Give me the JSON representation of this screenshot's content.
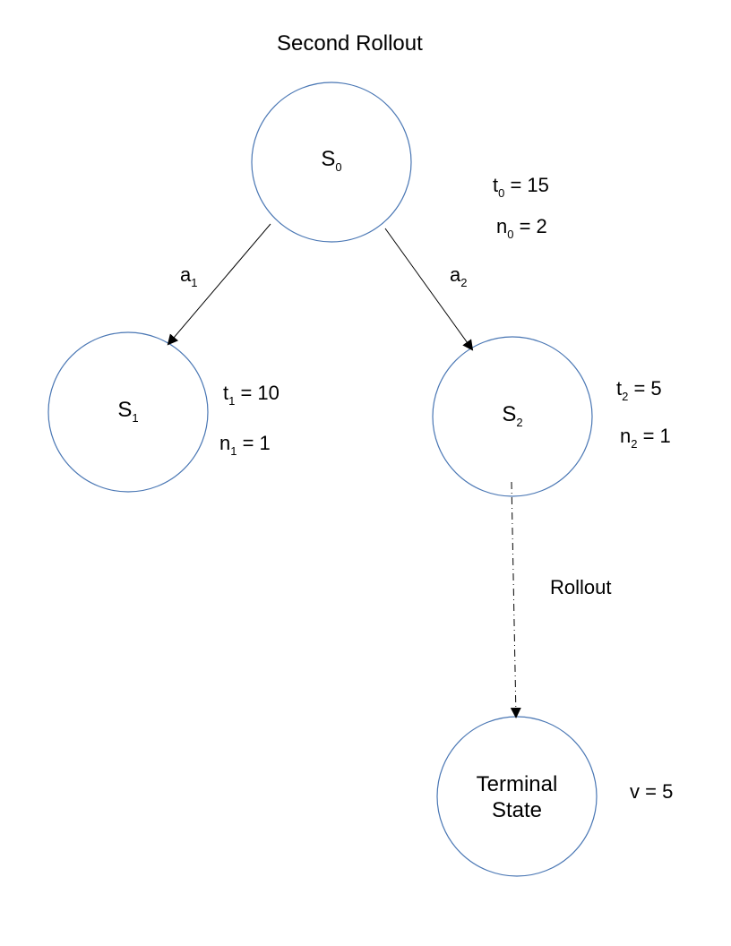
{
  "title": "Second Rollout",
  "nodes": {
    "s0": {
      "base": "S",
      "sub": "0"
    },
    "s1": {
      "base": "S",
      "sub": "1"
    },
    "s2": {
      "base": "S",
      "sub": "2"
    },
    "terminal": {
      "line1": "Terminal",
      "line2": "State"
    }
  },
  "edges": {
    "a1": {
      "base": "a",
      "sub": "1"
    },
    "a2": {
      "base": "a",
      "sub": "2"
    },
    "rollout": "Rollout"
  },
  "stats": {
    "t0": {
      "base": "t",
      "sub": "0",
      "rest": " = 15"
    },
    "n0": {
      "base": "n",
      "sub": "0",
      "rest": " = 2"
    },
    "t1": {
      "base": "t",
      "sub": "1",
      "rest": " = 10"
    },
    "n1": {
      "base": "n",
      "sub": "1",
      "rest": " = 1"
    },
    "t2": {
      "base": "t",
      "sub": "2",
      "rest": " = 5"
    },
    "n2": {
      "base": "n",
      "sub": "2",
      "rest": " = 1"
    },
    "v": "v = 5"
  },
  "colors": {
    "node_stroke": "#4a77b4",
    "edge": "#000000"
  }
}
